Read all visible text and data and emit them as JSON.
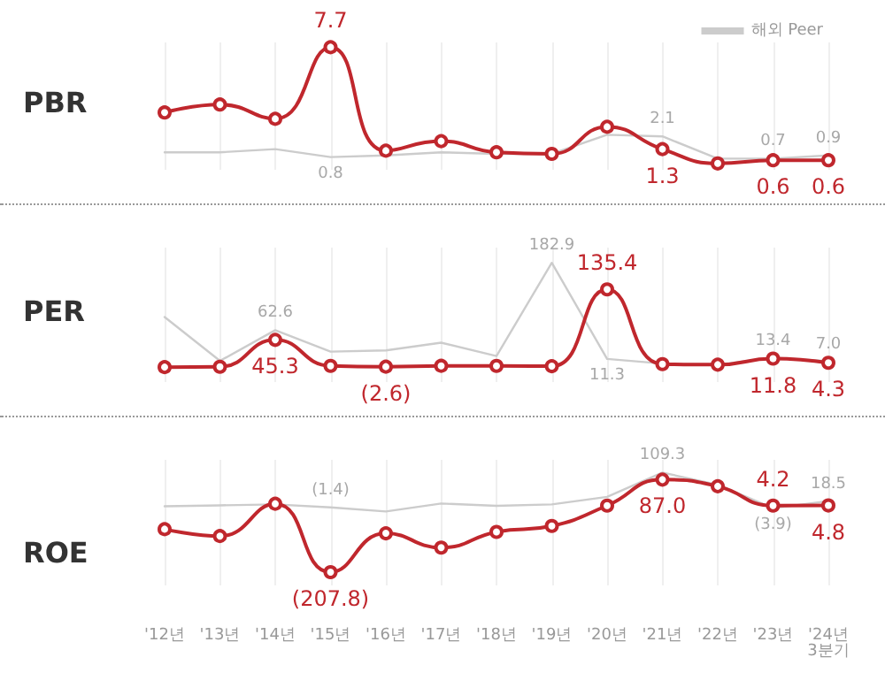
{
  "chart_data": [
    {
      "type": "line",
      "title": "PBR",
      "grid": "x",
      "legend": "top right",
      "tick_labels": false,
      "categories": [
        null,
        null,
        null,
        null,
        null,
        null,
        null,
        null,
        null,
        null,
        null,
        null,
        null
      ],
      "series": [
        {
          "name": "해외 Peer",
          "color": "#cccccc",
          "marker": "none",
          "values": [
            1.1,
            1.1,
            1.3,
            0.8,
            0.9,
            1.1,
            1.0,
            1.0,
            2.2,
            2.1,
            0.7,
            0.7,
            0.9
          ],
          "value_labels": [
            null,
            null,
            null,
            "0.8",
            null,
            null,
            null,
            null,
            null,
            "2.1",
            null,
            "0.7",
            "0.9"
          ]
        },
        {
          "color": "#c0272d",
          "marker": "circle",
          "values": [
            3.6,
            4.1,
            3.2,
            7.7,
            1.2,
            1.8,
            1.1,
            1.0,
            2.7,
            1.3,
            0.4,
            0.6,
            0.6
          ],
          "value_labels": [
            null,
            null,
            null,
            "7.7",
            null,
            null,
            null,
            null,
            null,
            "1.3",
            null,
            "0.6",
            "0.6"
          ]
        }
      ]
    },
    {
      "type": "line",
      "title": "PER",
      "grid": "x",
      "tick_labels": false,
      "categories": [
        null,
        null,
        null,
        null,
        null,
        null,
        null,
        null,
        null,
        null,
        null,
        null,
        null
      ],
      "series": [
        {
          "color": "#cccccc",
          "marker": "none",
          "values": [
            86.0,
            7.8,
            62.6,
            24.3,
            26.4,
            40.2,
            16.3,
            182.9,
            11.3,
            3.0,
            0.9,
            13.4,
            7.0
          ],
          "value_labels": [
            null,
            null,
            "62.6",
            null,
            null,
            null,
            null,
            "182.9",
            "11.3",
            null,
            null,
            "13.4",
            "7.0"
          ]
        },
        {
          "color": "#c0272d",
          "marker": "circle",
          "values": [
            -3.4,
            -2.7,
            45.3,
            -1.2,
            -2.6,
            -1.1,
            -1.2,
            -1.7,
            135.4,
            2.0,
            1.0,
            11.8,
            4.3
          ],
          "value_labels": [
            null,
            null,
            "45.3",
            null,
            "(2.6)",
            null,
            null,
            null,
            "135.4",
            null,
            null,
            "11.8",
            "4.3"
          ]
        }
      ]
    },
    {
      "type": "line",
      "title": "ROE",
      "grid": "x",
      "tick_labels": "x",
      "categories": [
        "'12년",
        "'13년",
        "'14년",
        "'15년",
        "'16년",
        "'17년",
        "'18년",
        "'19년",
        "'20년",
        "'21년",
        "'22년",
        "'23년",
        "'24년\n3분기"
      ],
      "series": [
        {
          "color": "#cccccc",
          "marker": "none",
          "values": [
            2.1,
            5.1,
            8.1,
            -1.4,
            -14.3,
            11.0,
            3.6,
            8.1,
            31.9,
            109.3,
            70.7,
            -3.9,
            18.5
          ],
          "value_labels": [
            null,
            null,
            null,
            "(1.4)",
            null,
            null,
            null,
            null,
            null,
            "109.3",
            null,
            "(3.9)",
            "18.5"
          ]
        },
        {
          "color": "#c0272d",
          "marker": "circle",
          "values": [
            -70.8,
            -92.8,
            10.1,
            -207.8,
            -84.0,
            -129.6,
            -79.6,
            -60.5,
            4.2,
            87.0,
            65.9,
            4.2,
            4.8
          ],
          "value_labels": [
            null,
            null,
            null,
            "(207.8)",
            null,
            null,
            null,
            null,
            null,
            "87.0",
            null,
            "4.2",
            "4.8"
          ]
        }
      ]
    }
  ]
}
